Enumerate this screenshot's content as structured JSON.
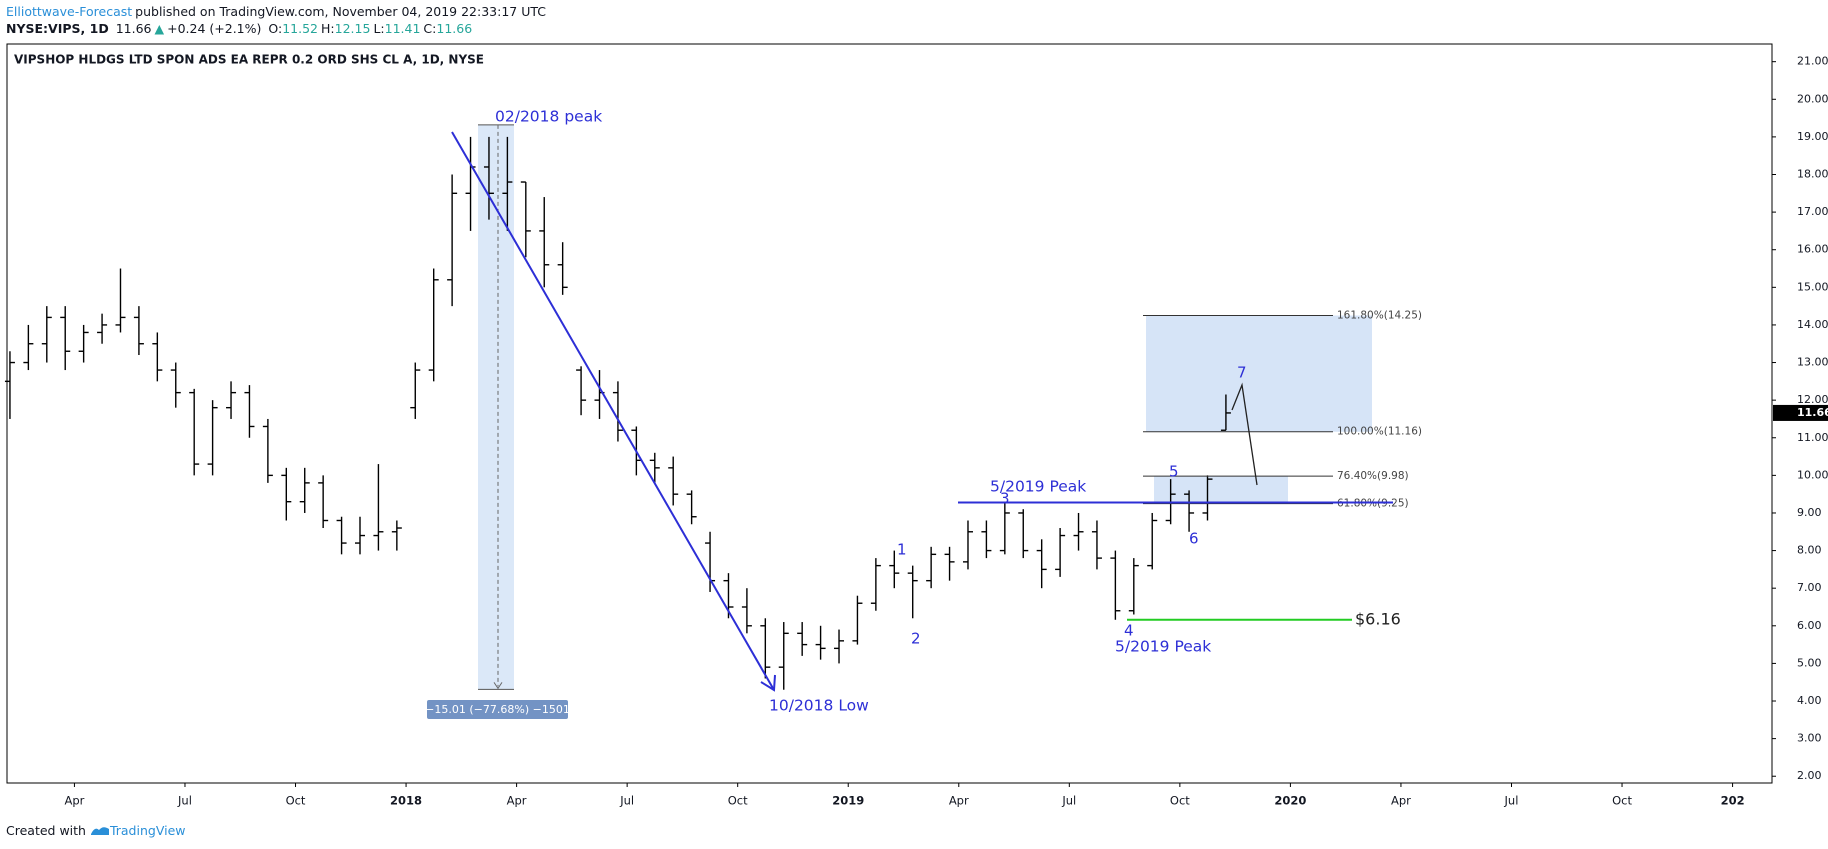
{
  "header": {
    "author": "Elliottwave-Forecast",
    "published": "published on TradingView.com, November 04, 2019 22:33:17 UTC",
    "symbol": "NYSE:VIPS, 1D",
    "price": "11.66",
    "arrow": "▲",
    "change": "+0.24 (+2.1%)",
    "ohlc": [
      {
        "label": "O:",
        "value": "11.52"
      },
      {
        "label": "H:",
        "value": "12.15"
      },
      {
        "label": "L:",
        "value": "11.41"
      },
      {
        "label": "C:",
        "value": "11.66"
      }
    ]
  },
  "chart_data": {
    "type": "ohlc",
    "title": "VIPSHOP HLDGS LTD SPON ADS EA REPR 0.2 ORD SHS CL A, 1D, NYSE",
    "color": "#000000",
    "x": [
      1.25,
      1.75,
      2.25,
      2.75,
      3.25,
      3.75,
      4.25,
      4.75,
      5.25,
      5.75,
      6.25,
      6.75,
      7.25,
      7.75,
      8.25,
      8.75,
      9.25,
      9.75,
      10.25,
      10.75,
      11.25,
      11.75,
      12.25,
      12.75,
      13.25,
      13.75,
      14.25,
      14.75,
      15.25,
      15.75,
      16.25,
      16.75,
      17.25,
      17.75,
      18.25,
      18.75,
      19.25,
      19.75,
      20.25,
      20.75,
      21.25,
      21.75,
      22.25,
      22.75,
      23.25,
      23.75,
      24.25,
      24.75,
      25.25,
      25.75,
      26.25,
      26.75,
      27.25,
      27.75,
      28.25,
      28.75,
      29.25,
      29.75,
      30.25,
      30.75,
      31.25,
      31.75,
      32.25,
      32.75,
      33.25,
      33.75,
      34.25
    ],
    "open": [
      12.5,
      13.0,
      13.5,
      14.2,
      13.3,
      13.8,
      14.0,
      14.2,
      13.5,
      12.8,
      12.2,
      10.3,
      11.8,
      12.2,
      11.3,
      10.0,
      9.3,
      9.8,
      8.8,
      8.2,
      8.4,
      8.5,
      11.8,
      12.8,
      15.2,
      17.5,
      18.2,
      17.5,
      17.8,
      16.5,
      15.6,
      12.8,
      12.0,
      12.2,
      11.2,
      10.4,
      10.2,
      9.5,
      8.2,
      7.2,
      6.5,
      6.0,
      4.9,
      5.8,
      5.5,
      5.4,
      5.6,
      6.6,
      7.6,
      7.4,
      7.2,
      7.9,
      7.7,
      8.5,
      8.0,
      9.0,
      8.0,
      7.5,
      8.4,
      8.5,
      7.8,
      6.4,
      7.6,
      8.8,
      9.5,
      9.0,
      11.2
    ],
    "high": [
      13.3,
      14.0,
      14.5,
      14.5,
      14.0,
      14.3,
      15.5,
      14.5,
      13.8,
      13.0,
      12.3,
      12.0,
      12.5,
      12.4,
      11.5,
      10.2,
      10.2,
      10.0,
      8.9,
      8.9,
      10.3,
      8.8,
      13.0,
      15.5,
      18.0,
      19.0,
      19.0,
      19.0,
      17.8,
      17.4,
      16.2,
      12.9,
      12.8,
      12.5,
      11.3,
      10.6,
      10.5,
      9.6,
      8.5,
      7.4,
      7.0,
      6.2,
      6.1,
      6.1,
      6.0,
      5.9,
      6.8,
      7.8,
      8.0,
      7.6,
      8.1,
      8.1,
      8.8,
      8.8,
      9.3,
      9.1,
      8.3,
      8.6,
      9.0,
      8.8,
      8.0,
      7.8,
      9.0,
      9.9,
      9.6,
      10.0,
      12.15
    ],
    "low": [
      11.5,
      12.8,
      13.0,
      12.8,
      13.0,
      13.5,
      13.8,
      13.2,
      12.5,
      11.8,
      10.0,
      10.0,
      11.5,
      11.0,
      9.8,
      8.8,
      9.0,
      8.6,
      7.9,
      7.9,
      8.0,
      8.0,
      11.5,
      12.5,
      14.5,
      16.5,
      16.8,
      16.5,
      15.8,
      15.0,
      14.8,
      11.6,
      11.5,
      10.9,
      10.0,
      9.8,
      9.2,
      8.7,
      6.9,
      6.2,
      5.8,
      4.6,
      4.3,
      5.2,
      5.1,
      5.0,
      5.5,
      6.4,
      7.0,
      6.2,
      7.0,
      7.2,
      7.5,
      7.8,
      7.9,
      7.8,
      7.0,
      7.3,
      8.0,
      7.5,
      6.16,
      6.3,
      7.5,
      8.7,
      8.5,
      8.8,
      11.2
    ],
    "close": [
      13.0,
      13.5,
      14.2,
      13.3,
      13.8,
      14.0,
      14.2,
      13.5,
      12.8,
      12.2,
      10.3,
      11.8,
      12.2,
      11.3,
      10.0,
      9.3,
      9.8,
      8.8,
      8.2,
      8.4,
      8.5,
      8.6,
      12.8,
      15.2,
      17.5,
      18.2,
      17.5,
      17.8,
      16.5,
      15.6,
      15.0,
      12.0,
      12.2,
      11.2,
      10.4,
      10.2,
      9.5,
      8.9,
      7.2,
      6.5,
      6.0,
      4.9,
      5.8,
      5.5,
      5.4,
      5.6,
      6.6,
      7.6,
      7.4,
      7.2,
      7.9,
      7.7,
      8.5,
      8.0,
      9.0,
      8.0,
      7.5,
      8.4,
      8.5,
      7.8,
      6.4,
      7.6,
      8.8,
      9.5,
      9.0,
      9.9,
      11.66
    ],
    "xlim": [
      1.17,
      49.07
    ],
    "xticks": [
      {
        "value": 3,
        "label": "Apr"
      },
      {
        "value": 6,
        "label": "Jul"
      },
      {
        "value": 9,
        "label": "Oct"
      },
      {
        "value": 12,
        "label": "2018"
      },
      {
        "value": 15,
        "label": "Apr"
      },
      {
        "value": 18,
        "label": "Jul"
      },
      {
        "value": 21,
        "label": "Oct"
      },
      {
        "value": 24,
        "label": "2019"
      },
      {
        "value": 27,
        "label": "Apr"
      },
      {
        "value": 30,
        "label": "Jul"
      },
      {
        "value": 33,
        "label": "Oct"
      },
      {
        "value": 36,
        "label": "2020"
      },
      {
        "value": 39,
        "label": "Apr"
      },
      {
        "value": 42,
        "label": "Jul"
      },
      {
        "value": 45,
        "label": "Oct"
      },
      {
        "value": 48,
        "label": "202"
      }
    ],
    "ylim": [
      1.82,
      21.47
    ],
    "yticks": [
      {
        "value": 2,
        "label": "2.00"
      },
      {
        "value": 3,
        "label": "3.00"
      },
      {
        "value": 4,
        "label": "4.00"
      },
      {
        "value": 5,
        "label": "5.00"
      },
      {
        "value": 6,
        "label": "6.00"
      },
      {
        "value": 7,
        "label": "7.00"
      },
      {
        "value": 8,
        "label": "8.00"
      },
      {
        "value": 9,
        "label": "9.00"
      },
      {
        "value": 10,
        "label": "10.00"
      },
      {
        "value": 11,
        "label": "11.00"
      },
      {
        "value": 12,
        "label": "12.00"
      },
      {
        "value": 13,
        "label": "13.00"
      },
      {
        "value": 14,
        "label": "14.00"
      },
      {
        "value": 15,
        "label": "15.00"
      },
      {
        "value": 16,
        "label": "16.00"
      },
      {
        "value": 17,
        "label": "17.00"
      },
      {
        "value": 18,
        "label": "18.00"
      },
      {
        "value": 19,
        "label": "19.00"
      },
      {
        "value": 20,
        "label": "20.00"
      },
      {
        "value": 21,
        "label": "21.00"
      }
    ],
    "last_price": 11.66,
    "fib_levels": [
      {
        "value": 14.25,
        "label": "161.80%(14.25)"
      },
      {
        "value": 11.16,
        "label": "100.00%(11.16)"
      },
      {
        "value": 9.98,
        "label": "76.40%(9.98)"
      },
      {
        "value": 9.25,
        "label": "61.80%(9.25)"
      }
    ],
    "support": {
      "value": 6.16,
      "label": "$6.16"
    },
    "measure": {
      "from": 19.32,
      "change": {
        "value": -15.01,
        "label": "−15.01 (−77.68%) −1501"
      }
    },
    "annotations": {
      "peak_2018": "02/2018 peak",
      "low_2018": "10/2018 Low",
      "peak_2019_top": "5/2019 Peak",
      "peak_2019_bottom": "5/2019 Peak",
      "waves": [
        "1",
        "2",
        "3",
        "4",
        "5",
        "6",
        "7"
      ]
    }
  },
  "footer": {
    "created": "Created with",
    "brand": "TradingView"
  }
}
